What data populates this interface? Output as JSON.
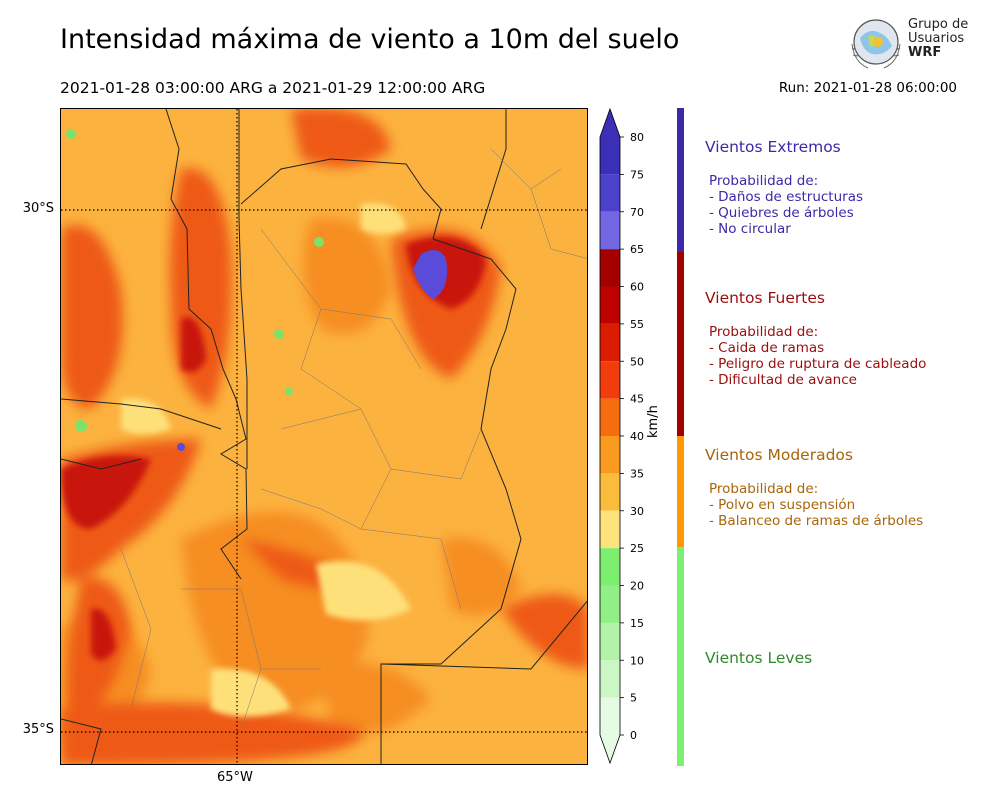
{
  "header": {
    "title": "Intensidad máxima de viento a 10m del suelo",
    "period": "2021-01-28 03:00:00 ARG  a  2021-01-29 12:00:00 ARG",
    "run": "Run: 2021-01-28 06:00:00"
  },
  "logo": {
    "line1": "Grupo de",
    "line2": "Usuarios",
    "line3": "WRF"
  },
  "map": {
    "lat_labels": [
      "30°S",
      "35°S"
    ],
    "lon_labels": [
      "65°W"
    ],
    "colors": {
      "background": "#fcb23f",
      "moderate_dark": "#f68e23",
      "strong_light": "#ee5a18",
      "strong_dark": "#c9150f",
      "extreme": "#5a4bd8",
      "light_yellow": "#fee07a",
      "green": "#7be36b"
    }
  },
  "colorbar": {
    "unit": "km/h",
    "ticks": [
      "80",
      "75",
      "70",
      "65",
      "60",
      "55",
      "50",
      "45",
      "40",
      "35",
      "30",
      "25",
      "20",
      "15",
      "10",
      "5",
      "0"
    ],
    "bins": [
      {
        "from": 75,
        "to": 80,
        "color": "#3b2fb7"
      },
      {
        "from": 70,
        "to": 75,
        "color": "#4c41cc"
      },
      {
        "from": 65,
        "to": 70,
        "color": "#7366e3"
      },
      {
        "from": 60,
        "to": 65,
        "color": "#a50000"
      },
      {
        "from": 55,
        "to": 60,
        "color": "#bd0000"
      },
      {
        "from": 50,
        "to": 55,
        "color": "#dc1c00"
      },
      {
        "from": 45,
        "to": 50,
        "color": "#f13c0c"
      },
      {
        "from": 40,
        "to": 45,
        "color": "#f66d10"
      },
      {
        "from": 35,
        "to": 40,
        "color": "#fa9a1f"
      },
      {
        "from": 30,
        "to": 35,
        "color": "#fbbb3b"
      },
      {
        "from": 25,
        "to": 30,
        "color": "#fee37c"
      },
      {
        "from": 20,
        "to": 25,
        "color": "#7cef6e"
      },
      {
        "from": 15,
        "to": 20,
        "color": "#90ef85"
      },
      {
        "from": 10,
        "to": 15,
        "color": "#b2f3a8"
      },
      {
        "from": 5,
        "to": 10,
        "color": "#ccf6c6"
      },
      {
        "from": 0,
        "to": 5,
        "color": "#e6fbe3"
      }
    ]
  },
  "categories": [
    {
      "title": "Vientos Extremos",
      "color": "#3a2aa8",
      "bar_color": "#3a2aa8",
      "intro": "Probabilidad de:",
      "lines": [
        "- Daños de estructuras",
        "- Quiebres de árboles",
        "- No circular"
      ]
    },
    {
      "title": "Vientos Fuertes",
      "color": "#9a0e0e",
      "bar_color": "#a50000",
      "intro": "Probabilidad de:",
      "lines": [
        "- Caida de ramas",
        "- Peligro de ruptura de cableado",
        "- Dificultad de avance"
      ]
    },
    {
      "title": "Vientos Moderados",
      "color": "#a8650a",
      "bar_color": "#ff9a00",
      "intro": "Probabilidad de:",
      "lines": [
        "- Polvo en suspensión",
        "- Balanceo de ramas de árboles"
      ]
    },
    {
      "title": "Vientos Leves",
      "color": "#2f8a2a",
      "bar_color": "#7cf071",
      "intro": "",
      "lines": []
    }
  ]
}
